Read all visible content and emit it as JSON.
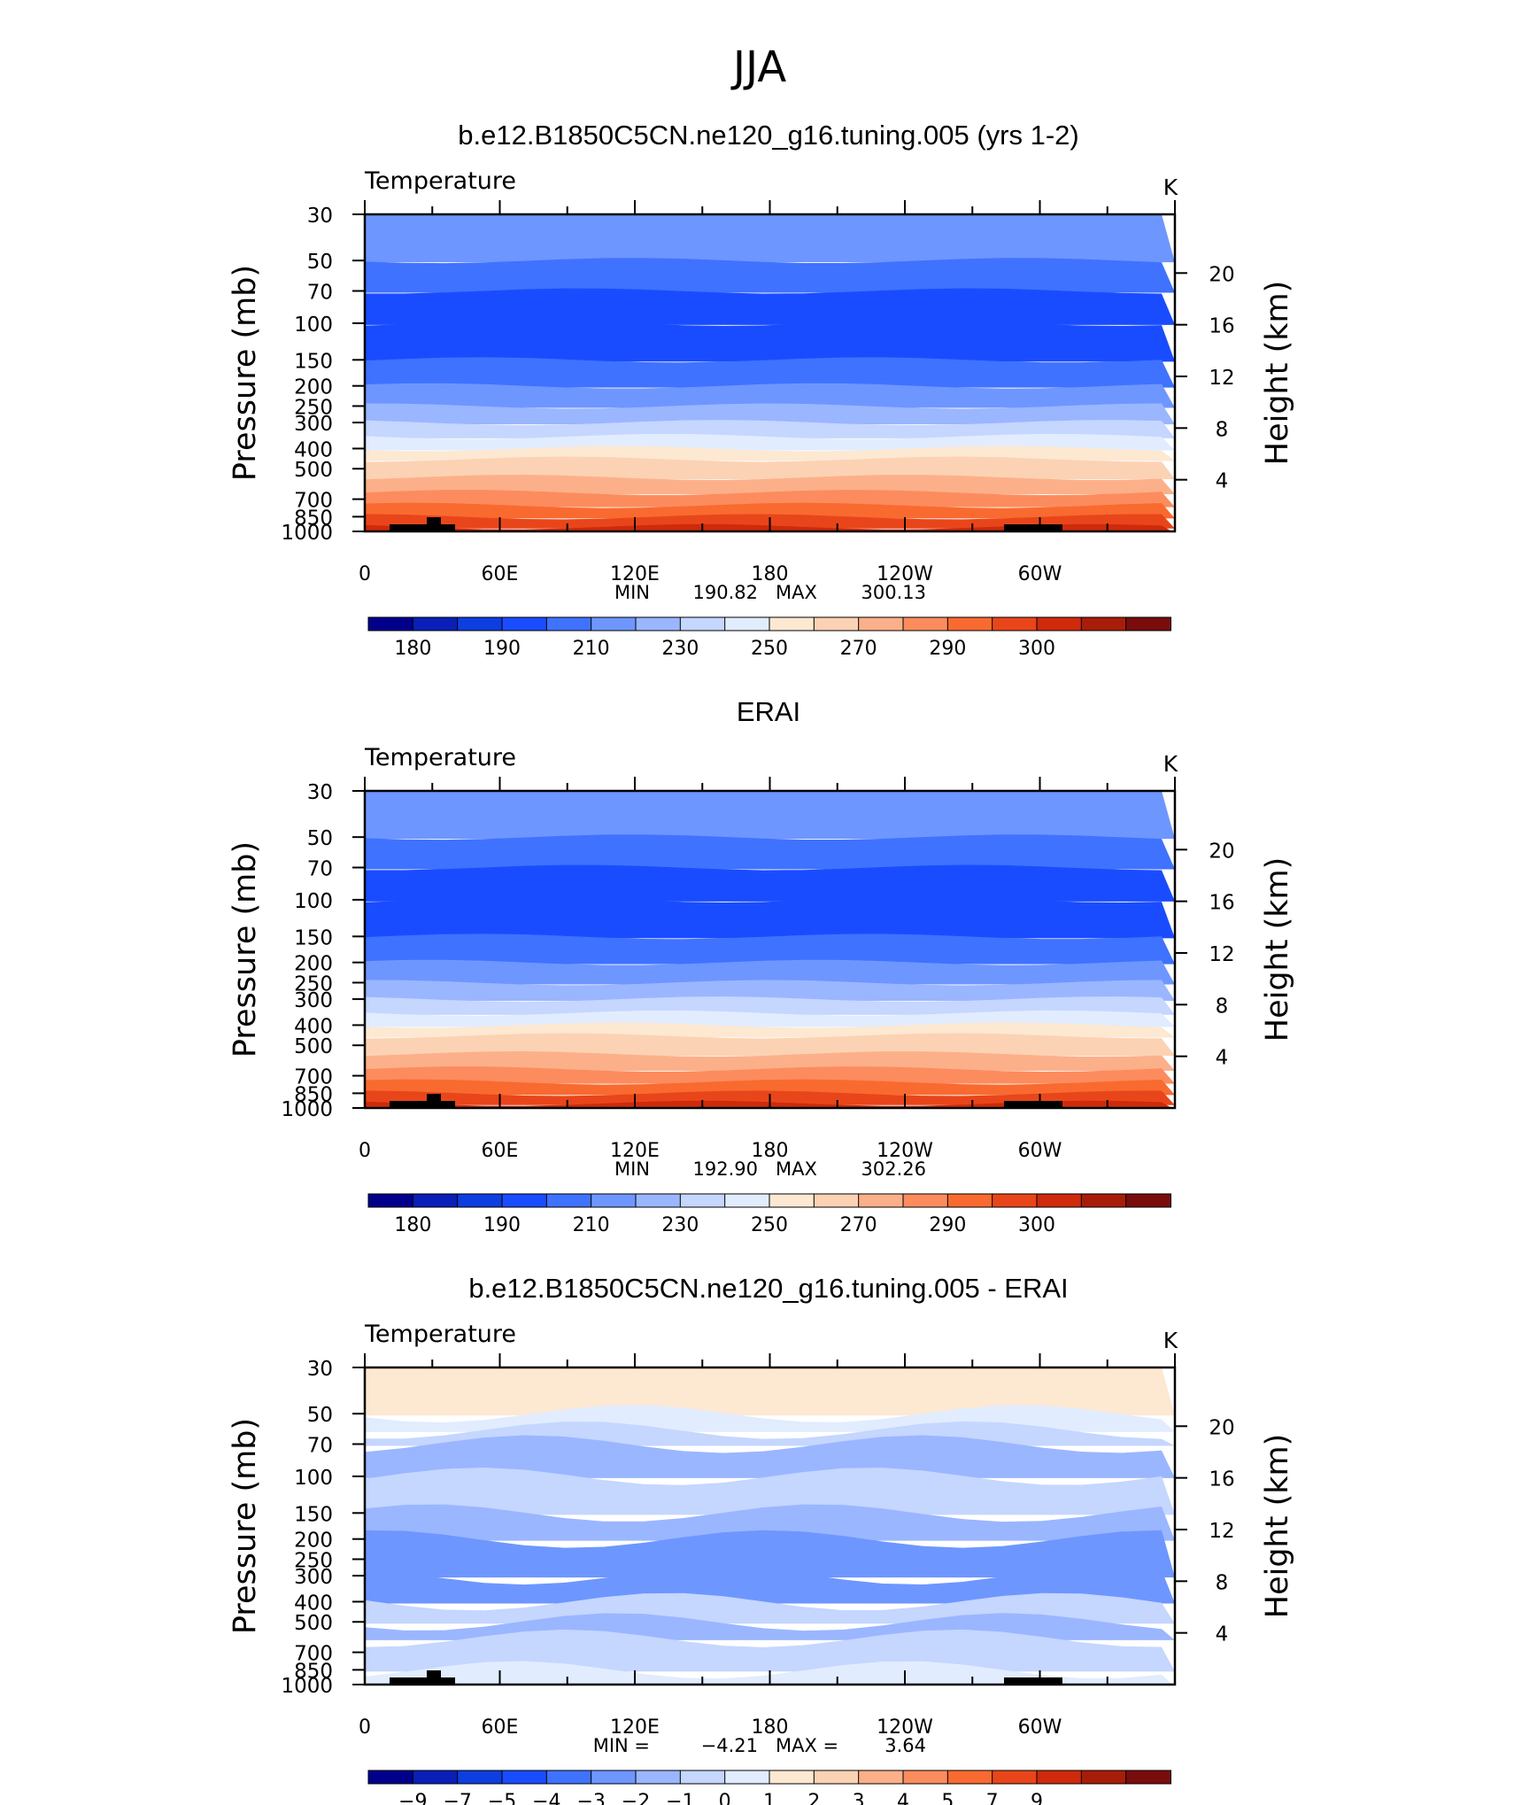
{
  "figure_title": "JJA",
  "colors": {
    "abs_palette": [
      "#00008b",
      "#0a1fb8",
      "#0d3ee0",
      "#1a4cff",
      "#3f72ff",
      "#6e96ff",
      "#9ab6ff",
      "#c5d6ff",
      "#e1ecff",
      "#fde8d2",
      "#fcd2b4",
      "#fcb08a",
      "#fc8c5e",
      "#f96a30",
      "#e8461a",
      "#cf2a0c",
      "#a81d0a",
      "#7a0c0c"
    ],
    "diff_palette": [
      "#00008b",
      "#0a1fb8",
      "#0d3ee0",
      "#1a4cff",
      "#3f72ff",
      "#6e96ff",
      "#9ab6ff",
      "#c5d6ff",
      "#e1ecff",
      "#fde8d2",
      "#fcd2b4",
      "#fcb08a",
      "#fc8c5e",
      "#f96a30",
      "#e8461a",
      "#cf2a0c",
      "#a81d0a",
      "#7a0c0c"
    ],
    "topography": "#000000"
  },
  "chart_data": [
    {
      "type": "heatmap",
      "panel_title": "b.e12.B1850C5CN.ne120_g16.tuning.005 (yrs 1-2)",
      "variable": "Temperature",
      "units": "K",
      "ylabel": "Pressure (mb)",
      "y2label": "Height (km)",
      "xticks": [
        "0",
        "60E",
        "120E",
        "180",
        "120W",
        "60W"
      ],
      "pressure_levels": [
        "30",
        "50",
        "70",
        "100",
        "150",
        "200",
        "250",
        "300",
        "400",
        "500",
        "700",
        "850",
        "1000"
      ],
      "height_ticks": [
        "20",
        "16",
        "12",
        "8",
        "4"
      ],
      "stats": {
        "min_label": "MIN",
        "min": "190.82",
        "max_label": "MAX",
        "max": "300.13"
      },
      "colorbar_labels": [
        "180",
        "190",
        "210",
        "230",
        "250",
        "270",
        "290",
        "300"
      ],
      "layers": [
        {
          "p": 30,
          "band": 5
        },
        {
          "p": 50,
          "band": 4
        },
        {
          "p": 70,
          "band": 3
        },
        {
          "p": 100,
          "band": 3
        },
        {
          "p": 150,
          "band": 4
        },
        {
          "p": 200,
          "band": 5
        },
        {
          "p": 250,
          "band": 6
        },
        {
          "p": 300,
          "band": 7
        },
        {
          "p": 350,
          "band": 8
        },
        {
          "p": 400,
          "band": 9
        },
        {
          "p": 450,
          "band": 10
        },
        {
          "p": 550,
          "band": 11
        },
        {
          "p": 650,
          "band": 12
        },
        {
          "p": 750,
          "band": 13
        },
        {
          "p": 850,
          "band": 14
        },
        {
          "p": 950,
          "band": 15
        }
      ]
    },
    {
      "type": "heatmap",
      "panel_title": "ERAI",
      "variable": "Temperature",
      "units": "K",
      "ylabel": "Pressure (mb)",
      "y2label": "Height (km)",
      "xticks": [
        "0",
        "60E",
        "120E",
        "180",
        "120W",
        "60W"
      ],
      "pressure_levels": [
        "30",
        "50",
        "70",
        "100",
        "150",
        "200",
        "250",
        "300",
        "400",
        "500",
        "700",
        "850",
        "1000"
      ],
      "height_ticks": [
        "20",
        "16",
        "12",
        "8",
        "4"
      ],
      "stats": {
        "min_label": "MIN",
        "min": "192.90",
        "max_label": "MAX",
        "max": "302.26"
      },
      "colorbar_labels": [
        "180",
        "190",
        "210",
        "230",
        "250",
        "270",
        "290",
        "300"
      ],
      "layers": [
        {
          "p": 30,
          "band": 5
        },
        {
          "p": 50,
          "band": 4
        },
        {
          "p": 70,
          "band": 3
        },
        {
          "p": 100,
          "band": 3
        },
        {
          "p": 150,
          "band": 4
        },
        {
          "p": 200,
          "band": 5
        },
        {
          "p": 250,
          "band": 6
        },
        {
          "p": 300,
          "band": 7
        },
        {
          "p": 350,
          "band": 8
        },
        {
          "p": 400,
          "band": 9
        },
        {
          "p": 450,
          "band": 10
        },
        {
          "p": 550,
          "band": 11
        },
        {
          "p": 650,
          "band": 12
        },
        {
          "p": 750,
          "band": 13
        },
        {
          "p": 850,
          "band": 14
        },
        {
          "p": 950,
          "band": 15
        }
      ]
    },
    {
      "type": "heatmap",
      "panel_title": "b.e12.B1850C5CN.ne120_g16.tuning.005 - ERAI",
      "variable": "Temperature",
      "units": "K",
      "ylabel": "Pressure (mb)",
      "y2label": "Height (km)",
      "xticks": [
        "0",
        "60E",
        "120E",
        "180",
        "120W",
        "60W"
      ],
      "pressure_levels": [
        "30",
        "50",
        "70",
        "100",
        "150",
        "200",
        "250",
        "300",
        "400",
        "500",
        "700",
        "850",
        "1000"
      ],
      "height_ticks": [
        "20",
        "16",
        "12",
        "8",
        "4"
      ],
      "stats": {
        "min_label": "MIN =",
        "min": "−4.21",
        "max_label": "MAX =",
        "max": "3.64"
      },
      "colorbar_labels": [
        "−9",
        "−7",
        "−5",
        "−4",
        "−3",
        "−2",
        "−1",
        "0",
        "1",
        "2",
        "3",
        "4",
        "5",
        "7",
        "9"
      ],
      "layers": [
        {
          "p": 30,
          "band": 9
        },
        {
          "p": 50,
          "band": 8
        },
        {
          "p": 60,
          "band": 7
        },
        {
          "p": 70,
          "band": 6
        },
        {
          "p": 100,
          "band": 7
        },
        {
          "p": 150,
          "band": 6
        },
        {
          "p": 200,
          "band": 5
        },
        {
          "p": 300,
          "band": 5
        },
        {
          "p": 400,
          "band": 7
        },
        {
          "p": 500,
          "band": 6
        },
        {
          "p": 600,
          "band": 7
        },
        {
          "p": 850,
          "band": 8
        }
      ]
    }
  ]
}
